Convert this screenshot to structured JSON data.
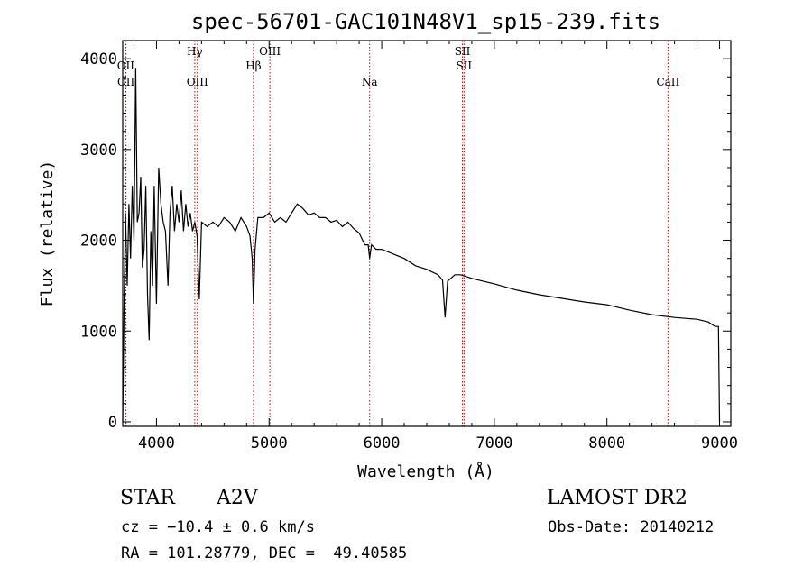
{
  "chart_data": {
    "type": "line",
    "title": "spec-56701-GAC101N48V1_sp15-239.fits",
    "xlabel": "Wavelength (Å)",
    "ylabel": "Flux (relative)",
    "xlim": [
      3700,
      9100
    ],
    "ylim": [
      -50,
      4200
    ],
    "xticks": [
      "4000",
      "5000",
      "6000",
      "7000",
      "8000",
      "9000"
    ],
    "xtick_values": [
      4000,
      5000,
      6000,
      7000,
      8000,
      9000
    ],
    "yticks": [
      "0",
      "1000",
      "2000",
      "3000",
      "4000"
    ],
    "ytick_values": [
      0,
      1000,
      2000,
      3000,
      4000
    ],
    "grid": false,
    "spectrum": {
      "x": [
        3700,
        3712,
        3725,
        3740,
        3755,
        3770,
        3785,
        3800,
        3815,
        3830,
        3845,
        3860,
        3875,
        3890,
        3905,
        3920,
        3935,
        3950,
        3965,
        3980,
        4000,
        4020,
        4040,
        4060,
        4080,
        4102,
        4120,
        4140,
        4160,
        4180,
        4200,
        4220,
        4240,
        4260,
        4280,
        4300,
        4320,
        4340,
        4360,
        4380,
        4400,
        4450,
        4500,
        4550,
        4600,
        4650,
        4700,
        4750,
        4800,
        4830,
        4850,
        4861,
        4875,
        4900,
        4950,
        5000,
        5050,
        5100,
        5150,
        5200,
        5250,
        5300,
        5350,
        5400,
        5450,
        5500,
        5550,
        5600,
        5650,
        5700,
        5750,
        5800,
        5850,
        5880,
        5893,
        5910,
        5950,
        6000,
        6100,
        6200,
        6300,
        6400,
        6500,
        6540,
        6563,
        6585,
        6650,
        6700,
        6750,
        6800,
        6900,
        7000,
        7200,
        7400,
        7600,
        7800,
        8000,
        8200,
        8400,
        8600,
        8800,
        8900,
        8960,
        8990,
        9000
      ],
      "y": [
        0,
        1300,
        2300,
        1500,
        2400,
        1800,
        2600,
        2000,
        3900,
        2200,
        2300,
        2700,
        1700,
        1900,
        2600,
        1400,
        900,
        2100,
        1500,
        2600,
        1300,
        2800,
        2400,
        2200,
        2100,
        1500,
        2300,
        2600,
        2100,
        2400,
        2200,
        2550,
        2100,
        2400,
        2150,
        2300,
        2100,
        2200,
        2050,
        1350,
        2200,
        2150,
        2200,
        2150,
        2250,
        2200,
        2100,
        2250,
        2150,
        2050,
        1800,
        1300,
        1900,
        2250,
        2250,
        2300,
        2200,
        2250,
        2200,
        2300,
        2400,
        2350,
        2280,
        2300,
        2250,
        2250,
        2200,
        2220,
        2150,
        2200,
        2130,
        2080,
        1950,
        1950,
        1800,
        1950,
        1900,
        1900,
        1850,
        1800,
        1720,
        1680,
        1620,
        1560,
        1150,
        1550,
        1620,
        1620,
        1600,
        1580,
        1550,
        1520,
        1450,
        1400,
        1360,
        1320,
        1290,
        1230,
        1180,
        1150,
        1130,
        1100,
        1050,
        1050,
        0
      ]
    },
    "line_labels": [
      {
        "name": "OII",
        "wavelength": 3727,
        "row": 2
      },
      {
        "name": "OII",
        "wavelength": 3729,
        "row": 3
      },
      {
        "name": "Hγ",
        "wavelength": 4340,
        "row": 1
      },
      {
        "name": "OIII",
        "wavelength": 4363,
        "row": 3
      },
      {
        "name": "Hβ",
        "wavelength": 4861,
        "row": 2
      },
      {
        "name": "OIII",
        "wavelength": 5007,
        "row": 1
      },
      {
        "name": "Na",
        "wavelength": 5893,
        "row": 3
      },
      {
        "name": "SII",
        "wavelength": 6717,
        "row": 1
      },
      {
        "name": "SII",
        "wavelength": 6731,
        "row": 2
      },
      {
        "name": "CaII",
        "wavelength": 8542,
        "row": 3
      }
    ],
    "colors": {
      "spectrum": "#000000",
      "line_markers": "#cc0000"
    }
  },
  "info": {
    "object_class": "STAR",
    "subclass": "A2V",
    "survey": "LAMOST DR2",
    "cz": "cz = −10.4 ± 0.6 km/s",
    "obs_date": "Obs-Date: 20140212",
    "coords": "RA = 101.28779, DEC =  49.40585"
  }
}
